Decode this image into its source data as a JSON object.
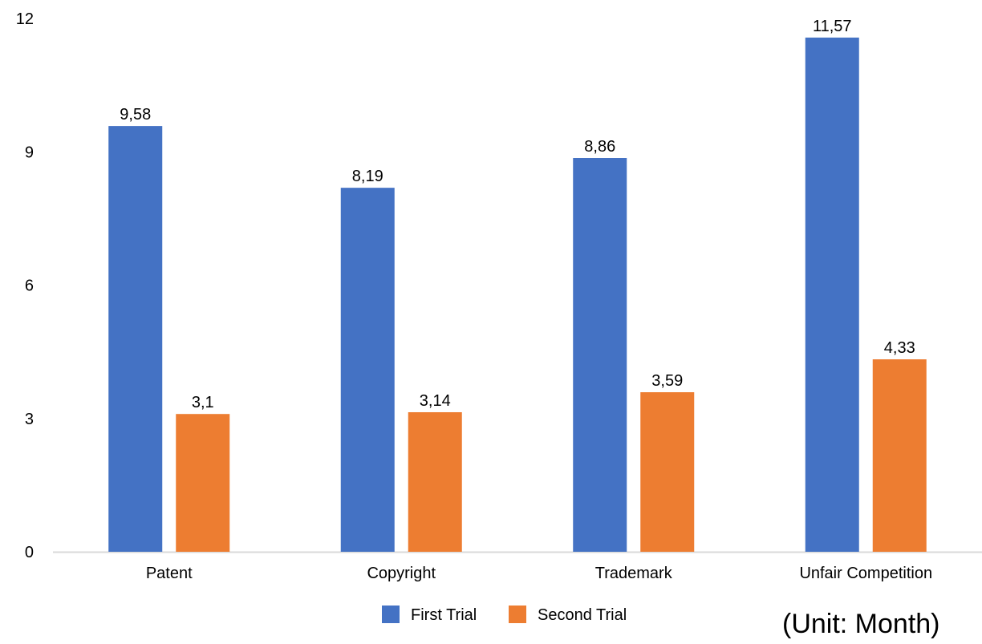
{
  "chart_data": {
    "type": "bar",
    "title": "",
    "xlabel": "",
    "ylabel": "",
    "categories": [
      "Patent",
      "Copyright",
      "Trademark",
      "Unfair Competition"
    ],
    "series": [
      {
        "name": "First Trial",
        "values": [
          9.58,
          8.19,
          8.86,
          11.57
        ],
        "labels": [
          "9,58",
          "8,19",
          "8,86",
          "11,57"
        ],
        "color": "#4472C4"
      },
      {
        "name": "Second Trial",
        "values": [
          3.1,
          3.14,
          3.59,
          4.33
        ],
        "labels": [
          "3,1",
          "3,14",
          "3,59",
          "4,33"
        ],
        "color": "#ED7D31"
      }
    ],
    "ylim": [
      0,
      12
    ],
    "yticks": [
      0,
      3,
      6,
      9,
      12
    ],
    "ytick_labels": [
      "0",
      "3",
      "6",
      "9",
      "12"
    ],
    "grid": false,
    "legend_position": "bottom",
    "axis_color": "#D9D9D9",
    "annotation": "(Unit: Month)"
  }
}
